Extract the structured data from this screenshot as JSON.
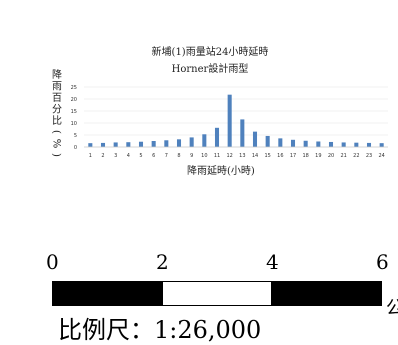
{
  "chart_data": {
    "type": "bar",
    "title": "新埔(1)雨量站24小時延時",
    "subtitle": "Horner設計雨型",
    "xlabel": "降雨延時(小時)",
    "ylabel": "降雨百分比(%)",
    "ylim": [
      0,
      25
    ],
    "yticks": [
      0,
      5,
      10,
      15,
      20,
      25
    ],
    "categories": [
      "1",
      "2",
      "3",
      "4",
      "5",
      "6",
      "7",
      "8",
      "9",
      "10",
      "11",
      "12",
      "13",
      "14",
      "15",
      "16",
      "17",
      "18",
      "19",
      "20",
      "21",
      "22",
      "23",
      "24"
    ],
    "values": [
      1.6,
      1.7,
      1.9,
      2.0,
      2.2,
      2.5,
      2.8,
      3.2,
      4.0,
      5.3,
      8.0,
      21.8,
      11.5,
      6.4,
      4.6,
      3.6,
      3.0,
      2.6,
      2.3,
      2.1,
      1.9,
      1.8,
      1.7,
      1.6
    ],
    "bar_color": "#4f81bd",
    "grid": true
  },
  "scale_bar": {
    "labels": [
      "0",
      "2",
      "4",
      "6"
    ],
    "ratio_text": "比例尺：1:26,000",
    "unit_partial": "公",
    "colors": [
      "#000000",
      "#ffffff",
      "#000000"
    ]
  }
}
